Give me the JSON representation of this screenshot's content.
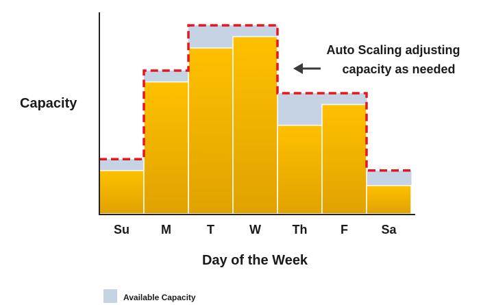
{
  "chart_data": {
    "type": "bar",
    "title": "",
    "xlabel": "Day of the Week",
    "ylabel": "Capacity",
    "categories": [
      "Su",
      "M",
      "T",
      "W",
      "Th",
      "F",
      "Sa"
    ],
    "ylim": [
      0,
      100
    ],
    "grid": false,
    "series": [
      {
        "name": "Available Capacity",
        "values": [
          29,
          76,
          100,
          100,
          64,
          64,
          23
        ]
      },
      {
        "values": [
          23,
          70,
          88,
          94,
          47,
          58,
          15
        ]
      }
    ],
    "annotation": {
      "lines": [
        "Auto Scaling adjusting",
        "capacity as needed"
      ]
    },
    "legend": {
      "placement": "bottom-left",
      "entries": [
        "Available Capacity"
      ]
    },
    "colors": {
      "available_fill": "#c5d3e5",
      "usage_top": "#ffc000",
      "usage_bottom": "#e0a200",
      "scaling_line": "#e8141e",
      "axis": "#222222",
      "arrow": "#3a3a3a"
    }
  }
}
